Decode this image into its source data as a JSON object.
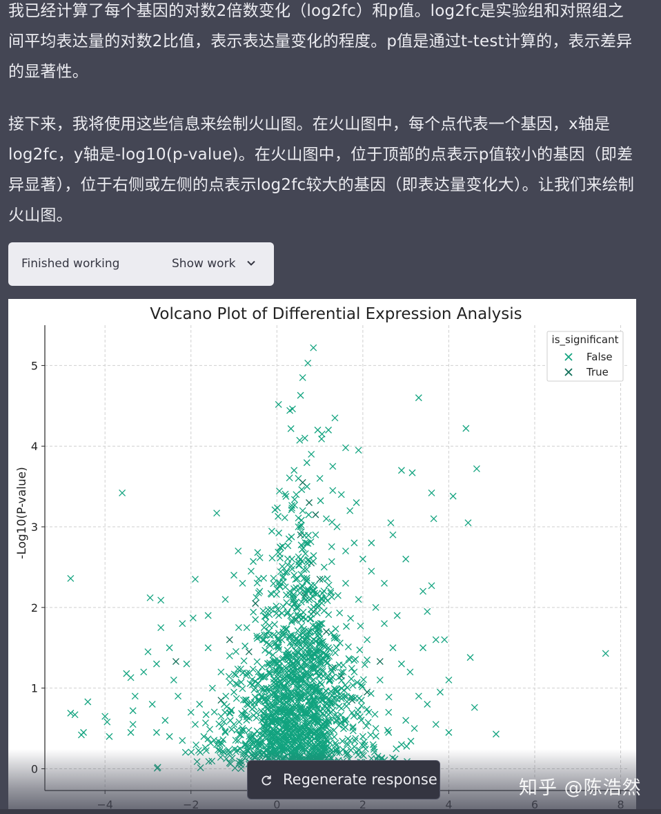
{
  "message": {
    "paragraph_1": "我已经计算了每个基因的对数2倍数变化（log2fc）和p值。log2fc是实验组和对照组之间平均表达量的对数2比值，表示表达量变化的程度。p值是通过t-test计算的，表示差异的显著性。",
    "paragraph_2": "接下来，我将使用这些信息来绘制火山图。在火山图中，每个点代表一个基因，x轴是log2fc，y轴是-log10(p-value)。在火山图中，位于顶部的点表示p值较小的基因（即差异显著），位于右侧或左侧的点表示log2fc较大的基因（即表达量变化大）。让我们来绘制火山图。"
  },
  "work": {
    "status": "Finished working",
    "toggle_label": "Show work",
    "toggle_icon": "chevron-down-icon"
  },
  "regenerate": {
    "label": "Regenerate response",
    "icon": "refresh-icon"
  },
  "watermark": "知乎 @陈浩然",
  "chart_data": {
    "type": "scatter",
    "title": "Volcano Plot of Differential Expression Analysis",
    "xlabel": "",
    "ylabel": "-Log10(P-value)",
    "xlim": [
      -5.4,
      8.2
    ],
    "ylim": [
      -0.27,
      5.5
    ],
    "x_ticks": [
      -4,
      -2,
      0,
      2,
      4,
      6,
      8
    ],
    "y_ticks": [
      0,
      1,
      2,
      3,
      4,
      5
    ],
    "x_tick_labels": [
      "−4",
      "−2",
      "0",
      "2",
      "4",
      "6",
      "8"
    ],
    "y_tick_labels": [
      "0",
      "1",
      "2",
      "3",
      "4",
      "5"
    ],
    "grid": true,
    "marker": "x",
    "legend": {
      "title": "is_significant",
      "placement": "top-right",
      "entries": [
        "False",
        "True"
      ]
    },
    "colors": {
      "False": "#12a37f",
      "True": "#0f6e57"
    },
    "series": [
      {
        "name": "False",
        "points": [
          [
            0.05,
            0.05
          ],
          [
            0.1,
            0.1
          ],
          [
            0.18,
            0.15
          ],
          [
            -0.1,
            0.08
          ],
          [
            -0.2,
            0.12
          ],
          [
            0.3,
            0.2
          ],
          [
            0.4,
            0.25
          ],
          [
            0.5,
            0.3
          ],
          [
            -0.3,
            0.2
          ],
          [
            -0.45,
            0.3
          ],
          [
            0.2,
            0.5
          ],
          [
            0.35,
            0.6
          ],
          [
            0.6,
            0.5
          ],
          [
            -0.6,
            0.4
          ],
          [
            -0.8,
            0.5
          ],
          [
            0.8,
            0.45
          ],
          [
            1.0,
            0.5
          ],
          [
            -1.0,
            0.55
          ],
          [
            1.2,
            0.6
          ],
          [
            -1.2,
            0.45
          ],
          [
            0.15,
            0.8
          ],
          [
            0.25,
            1.0
          ],
          [
            0.4,
            1.1
          ],
          [
            0.55,
            0.9
          ],
          [
            0.7,
            1.2
          ],
          [
            -0.15,
            0.7
          ],
          [
            -0.35,
            0.9
          ],
          [
            -0.5,
            1.0
          ],
          [
            0.9,
            1.0
          ],
          [
            1.1,
            0.9
          ],
          [
            0.3,
            1.4
          ],
          [
            0.45,
            1.6
          ],
          [
            0.6,
            1.5
          ],
          [
            0.75,
            1.7
          ],
          [
            0.5,
            2.0
          ],
          [
            0.65,
            2.2
          ],
          [
            0.4,
            2.4
          ],
          [
            0.55,
            2.6
          ],
          [
            0.7,
            2.8
          ],
          [
            0.5,
            3.0
          ],
          [
            0.3,
            2.2
          ],
          [
            0.35,
            2.6
          ],
          [
            0.6,
            3.2
          ],
          [
            0.45,
            3.4
          ],
          [
            0.5,
            3.6
          ],
          [
            0.7,
            3.5
          ],
          [
            0.4,
            3.7
          ],
          [
            0.8,
            3.9
          ],
          [
            0.65,
            4.1
          ],
          [
            0.55,
            4.63
          ],
          [
            0.6,
            4.85
          ],
          [
            0.72,
            5.03
          ],
          [
            0.85,
            5.22
          ],
          [
            0.95,
            4.2
          ],
          [
            1.05,
            4.15
          ],
          [
            1.2,
            4.2
          ],
          [
            1.35,
            4.35
          ],
          [
            1.6,
            3.98
          ],
          [
            1.9,
            3.95
          ],
          [
            1.0,
            3.6
          ],
          [
            1.3,
            3.75
          ],
          [
            1.5,
            3.4
          ],
          [
            1.7,
            3.2
          ],
          [
            1.4,
            3.0
          ],
          [
            1.8,
            2.8
          ],
          [
            2.0,
            2.6
          ],
          [
            2.2,
            2.45
          ],
          [
            1.6,
            2.3
          ],
          [
            1.9,
            2.1
          ],
          [
            2.3,
            2.0
          ],
          [
            2.5,
            1.8
          ],
          [
            2.1,
            1.6
          ],
          [
            2.7,
            1.5
          ],
          [
            2.9,
            1.3
          ],
          [
            3.1,
            1.2
          ],
          [
            2.4,
            1.1
          ],
          [
            3.3,
            0.9
          ],
          [
            3.5,
            0.8
          ],
          [
            2.6,
            0.7
          ],
          [
            3.0,
            0.6
          ],
          [
            3.3,
            4.6
          ],
          [
            4.4,
            4.22
          ],
          [
            4.65,
            3.72
          ],
          [
            2.9,
            3.7
          ],
          [
            3.15,
            3.67
          ],
          [
            3.6,
            3.42
          ],
          [
            4.1,
            3.38
          ],
          [
            3.65,
            3.1
          ],
          [
            4.45,
            3.05
          ],
          [
            2.65,
            3.05
          ],
          [
            3.0,
            2.6
          ],
          [
            3.4,
            2.2
          ],
          [
            3.6,
            2.27
          ],
          [
            3.5,
            1.95
          ],
          [
            3.7,
            1.6
          ],
          [
            3.9,
            1.6
          ],
          [
            4.5,
            1.38
          ],
          [
            4.6,
            0.76
          ],
          [
            5.1,
            0.43
          ],
          [
            7.65,
            1.43
          ],
          [
            3.8,
            0.95
          ],
          [
            4.0,
            1.1
          ],
          [
            3.2,
            0.5
          ],
          [
            3.7,
            0.55
          ],
          [
            4.0,
            0.45
          ],
          [
            3.4,
            1.5
          ],
          [
            2.8,
            1.9
          ],
          [
            2.5,
            2.3
          ],
          [
            2.2,
            2.8
          ],
          [
            2.7,
            2.9
          ],
          [
            -0.3,
            1.6
          ],
          [
            -0.5,
            1.85
          ],
          [
            -0.7,
            1.75
          ],
          [
            -0.4,
            2.2
          ],
          [
            -0.6,
            2.45
          ],
          [
            -0.55,
            2.57
          ],
          [
            -0.8,
            2.3
          ],
          [
            -1.0,
            2.4
          ],
          [
            -0.9,
            2.7
          ],
          [
            -1.2,
            2.1
          ],
          [
            -1.4,
            3.17
          ],
          [
            -1.9,
            2.35
          ],
          [
            -1.6,
            1.9
          ],
          [
            -1.95,
            1.87
          ],
          [
            -2.2,
            1.8
          ],
          [
            -2.5,
            1.5
          ],
          [
            -2.8,
            1.3
          ],
          [
            -2.95,
            2.12
          ],
          [
            -2.7,
            2.09
          ],
          [
            -2.7,
            1.75
          ],
          [
            -3.6,
            3.42
          ],
          [
            -4.8,
            2.36
          ],
          [
            -3.4,
            1.13
          ],
          [
            -3.5,
            1.18
          ],
          [
            -3.3,
            0.9
          ],
          [
            -3.1,
            1.2
          ],
          [
            -3.0,
            1.45
          ],
          [
            -3.35,
            0.72
          ],
          [
            -3.35,
            0.55
          ],
          [
            -3.4,
            0.45
          ],
          [
            -4.0,
            0.65
          ],
          [
            -3.95,
            0.58
          ],
          [
            -3.9,
            0.4
          ],
          [
            -4.4,
            0.83
          ],
          [
            -4.5,
            0.45
          ],
          [
            -4.55,
            0.42
          ],
          [
            -4.8,
            0.69
          ],
          [
            -4.7,
            0.67
          ],
          [
            -2.9,
            0.8
          ],
          [
            -2.6,
            0.6
          ],
          [
            -2.3,
            0.9
          ],
          [
            -2.0,
            0.7
          ],
          [
            -1.8,
            0.8
          ],
          [
            -1.5,
            1.0
          ],
          [
            -1.3,
            1.2
          ],
          [
            -1.1,
            1.4
          ],
          [
            -1.6,
            1.5
          ],
          [
            -2.1,
            1.3
          ],
          [
            -2.4,
            1.1
          ],
          [
            -1.7,
            0.4
          ],
          [
            -1.4,
            0.3
          ],
          [
            -1.1,
            0.2
          ],
          [
            -0.9,
            0.35
          ],
          [
            -2.2,
            0.35
          ],
          [
            -2.5,
            0.4
          ],
          [
            -2.8,
            0.45
          ],
          [
            -1.9,
            0.55
          ],
          [
            -1.3,
            0.65
          ],
          [
            -0.7,
            0.8
          ],
          [
            -1.0,
            0.95
          ],
          [
            1.4,
            0.2
          ],
          [
            1.7,
            0.35
          ],
          [
            2.0,
            0.4
          ],
          [
            2.3,
            0.5
          ],
          [
            2.6,
            0.45
          ],
          [
            2.9,
            0.3
          ],
          [
            1.5,
            0.75
          ],
          [
            1.8,
            1.2
          ],
          [
            2.1,
            1.35
          ],
          [
            1.6,
            2.7
          ],
          [
            1.85,
            3.3
          ],
          [
            1.3,
            3.45
          ],
          [
            1.15,
            3.1
          ],
          [
            0.9,
            2.9
          ],
          [
            1.1,
            2.5
          ],
          [
            1.25,
            2.2
          ],
          [
            0.95,
            2.0
          ],
          [
            1.05,
            1.8
          ],
          [
            1.2,
            1.5
          ],
          [
            0.85,
            1.3
          ]
        ]
      },
      {
        "name": "True",
        "points": [
          [
            0.6,
            3.55
          ],
          [
            0.75,
            3.3
          ],
          [
            0.9,
            3.15
          ],
          [
            0.55,
            2.9
          ],
          [
            0.8,
            2.55
          ],
          [
            1.0,
            2.35
          ],
          [
            0.65,
            2.15
          ],
          [
            0.85,
            1.95
          ],
          [
            1.15,
            1.7
          ],
          [
            0.45,
            1.85
          ],
          [
            1.3,
            1.25
          ],
          [
            1.5,
            1.15
          ],
          [
            -0.5,
            2.05
          ],
          [
            -0.65,
            1.45
          ],
          [
            -1.1,
            1.6
          ],
          [
            -2.35,
            1.33
          ],
          [
            2.4,
            1.33
          ],
          [
            2.1,
            0.95
          ],
          [
            1.75,
            0.85
          ],
          [
            -1.3,
            0.85
          ]
        ]
      }
    ]
  }
}
